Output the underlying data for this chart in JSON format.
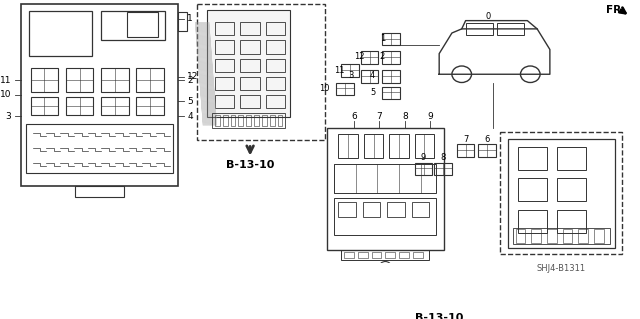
{
  "bg_color": "#ffffff",
  "line_color": "#333333",
  "fig_width": 6.4,
  "fig_height": 3.19,
  "watermark": "SHJ4-B1311",
  "ref_label": "B-13-10",
  "fr_label": "FR."
}
